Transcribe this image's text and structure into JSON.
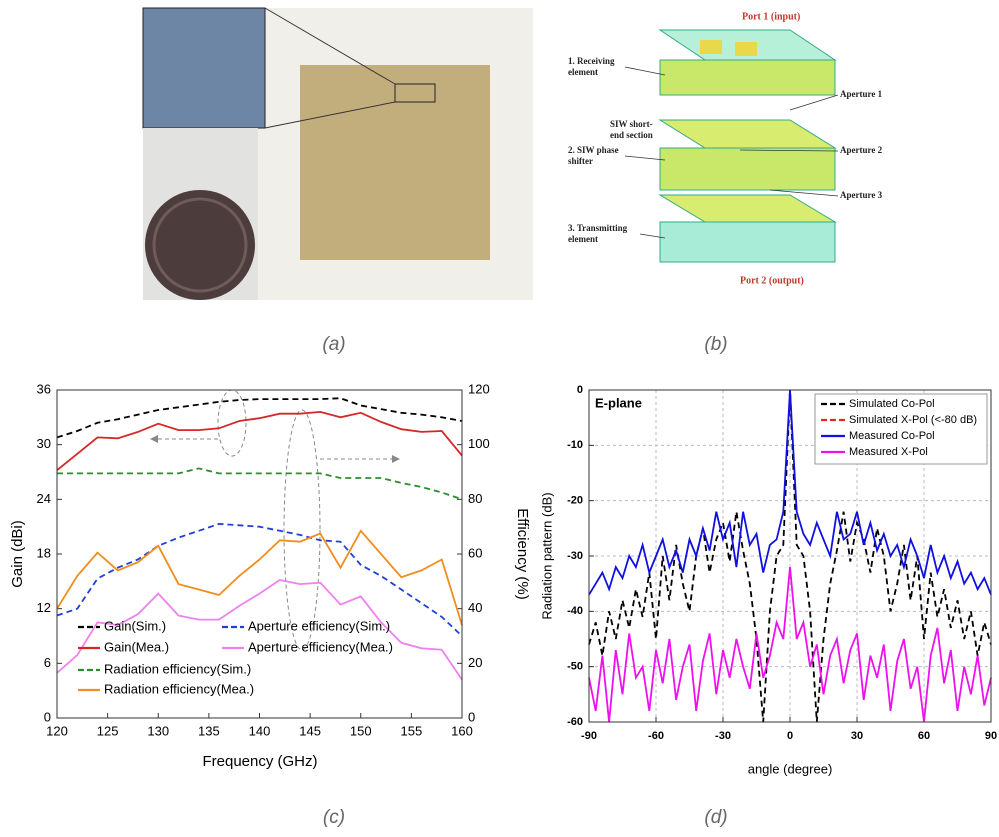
{
  "panels": {
    "captions": [
      "(a)",
      "(b)",
      "(c)",
      "(d)"
    ]
  },
  "diagram": {
    "labels": [
      "Port 1 (input)",
      "1. Receiving",
      "element",
      "SIW short-",
      "end section",
      "2. SIW phase",
      "shifter",
      "3. Transmitting",
      "element",
      "Aperture 1",
      "Aperture 2",
      "Aperture 3",
      "Port 2 (output)"
    ]
  },
  "chart_data": [
    {
      "type": "line",
      "xlabel": "Frequency (GHz)",
      "ylabel": "Gain (dBi)",
      "y2label": "Efficiency (%)",
      "x": [
        120,
        122,
        124,
        126,
        128,
        130,
        132,
        134,
        136,
        138,
        140,
        142,
        144,
        146,
        148,
        150,
        152,
        154,
        156,
        158,
        160
      ],
      "xlim": [
        120,
        160
      ],
      "xticks": [
        120,
        125,
        130,
        135,
        140,
        145,
        150,
        155,
        160
      ],
      "ylim": [
        0,
        36
      ],
      "yticks": [
        0,
        6,
        12,
        18,
        24,
        30,
        36
      ],
      "y2lim": [
        0,
        120
      ],
      "y2ticks": [
        0,
        20,
        40,
        60,
        80,
        100,
        120
      ],
      "grid": false,
      "series": [
        {
          "name": "Gain(Sim.)",
          "color": "#000000",
          "style": "dashed",
          "axis": "y",
          "values": [
            30.8,
            31.5,
            32.4,
            32.8,
            33.3,
            33.8,
            34.1,
            34.4,
            34.7,
            34.9,
            35,
            35,
            35,
            35,
            35.1,
            34.3,
            33.9,
            33.5,
            33.3,
            33.0,
            32.6
          ]
        },
        {
          "name": "Aperture efficiency(Sim.)",
          "color": "#1f3fd8",
          "style": "dashed",
          "axis": "y2",
          "values": [
            37.5,
            40,
            51,
            55,
            58,
            63,
            66,
            68.5,
            71,
            70.5,
            70,
            68.5,
            67,
            65,
            64.5,
            56,
            52,
            47,
            42,
            37,
            30
          ]
        },
        {
          "name": "Gain(Mea.)",
          "color": "#d62728",
          "style": "solid",
          "axis": "y",
          "values": [
            27.2,
            29,
            30.8,
            30.7,
            31.4,
            32.3,
            31.6,
            31.6,
            31.8,
            32.6,
            32.9,
            33.4,
            33.4,
            33.6,
            33,
            33.5,
            32.5,
            31.7,
            31.4,
            31.5,
            28.8
          ]
        },
        {
          "name": "Aperture efficiency(Mea.)",
          "color": "#ee82ee",
          "style": "solid",
          "axis": "y2",
          "values": [
            16.5,
            23,
            35,
            34,
            38,
            45.5,
            37.5,
            36,
            36,
            41,
            45.5,
            50.5,
            49,
            49.5,
            41.5,
            44.5,
            35,
            27.5,
            25.5,
            25,
            14
          ]
        },
        {
          "name": "Radiation efficiency(Sim.)",
          "color": "#2e8b2e",
          "style": "dashed",
          "axis": "y2",
          "values": [
            89.5,
            89.5,
            89.5,
            89.5,
            89.5,
            89.5,
            89.5,
            91.3,
            89.5,
            89.5,
            89.5,
            89.5,
            89.5,
            89.5,
            87.8,
            87.8,
            87.8,
            86,
            84.5,
            82.5,
            80
          ]
        },
        {
          "name": "Radiation efficiency(Mea.)",
          "color": "#f28c1e",
          "style": "solid",
          "axis": "y2",
          "values": [
            40,
            52,
            60.5,
            54,
            57,
            63,
            49,
            47,
            45,
            52,
            58,
            65,
            64.5,
            67.5,
            55,
            68.5,
            60,
            51.5,
            54,
            58,
            34
          ]
        }
      ]
    },
    {
      "type": "line",
      "annotation": "E-plane",
      "xlabel": "angle (degree)",
      "ylabel": "Radiation pattern (dB)",
      "x": [
        -90,
        -87,
        -84,
        -81,
        -78,
        -75,
        -72,
        -69,
        -66,
        -63,
        -60,
        -57,
        -54,
        -51,
        -48,
        -45,
        -42,
        -39,
        -36,
        -33,
        -30,
        -27,
        -24,
        -21,
        -18,
        -15,
        -12,
        -9,
        -6,
        -3,
        0,
        3,
        6,
        9,
        12,
        15,
        18,
        21,
        24,
        27,
        30,
        33,
        36,
        39,
        42,
        45,
        48,
        51,
        54,
        57,
        60,
        63,
        66,
        69,
        72,
        75,
        78,
        81,
        84,
        87,
        90
      ],
      "xlim": [
        -90,
        90
      ],
      "xticks": [
        -90,
        -60,
        -30,
        0,
        30,
        60,
        90
      ],
      "ylim": [
        -60,
        0
      ],
      "yticks": [
        -60,
        -50,
        -40,
        -30,
        -20,
        -10,
        0
      ],
      "grid": true,
      "legend": "upper right",
      "series": [
        {
          "name": "Simulated Co-Pol",
          "color": "#000000",
          "style": "dashed",
          "values": [
            -46,
            -42,
            -48,
            -40,
            -45,
            -38,
            -43,
            -36,
            -41,
            -33,
            -45,
            -30,
            -38,
            -28,
            -35,
            -40,
            -30,
            -25,
            -33,
            -27,
            -24,
            -31,
            -22,
            -29,
            -35,
            -45,
            -60,
            -40,
            -30,
            -28,
            0,
            -28,
            -30,
            -40,
            -60,
            -45,
            -35,
            -29,
            -22,
            -31,
            -24,
            -27,
            -33,
            -25,
            -30,
            -40,
            -35,
            -28,
            -38,
            -30,
            -45,
            -33,
            -41,
            -36,
            -43,
            -38,
            -45,
            -40,
            -48,
            -42,
            -46
          ]
        },
        {
          "name": "Simulated X-Pol (<-80 dB)",
          "color": "#e8281e",
          "style": "dashed",
          "values": [
            null,
            null,
            null,
            null,
            null,
            null,
            null,
            null,
            null,
            null,
            null,
            null,
            null,
            null,
            null,
            null,
            null,
            null,
            null,
            null,
            null,
            null,
            null,
            null,
            null,
            null,
            null,
            null,
            null,
            null,
            null,
            null,
            null,
            null,
            null,
            null,
            null,
            null,
            null,
            null,
            null,
            null,
            null,
            null,
            null,
            null,
            null,
            null,
            null,
            null,
            null,
            null,
            null,
            null,
            null,
            null,
            null,
            null,
            null,
            null,
            null
          ]
        },
        {
          "name": "Measured Co-Pol",
          "color": "#1010e0",
          "style": "solid",
          "values": [
            -37,
            -35,
            -33,
            -36,
            -32,
            -34,
            -30,
            -32,
            -28,
            -33,
            -30,
            -27,
            -32,
            -29,
            -33,
            -27,
            -30,
            -25,
            -29,
            -22,
            -27,
            -24,
            -32,
            -22,
            -28,
            -26,
            -33,
            -28,
            -27,
            -22,
            0,
            -22,
            -26,
            -28,
            -24,
            -27,
            -30,
            -22,
            -27,
            -26,
            -22,
            -28,
            -24,
            -29,
            -26,
            -30,
            -28,
            -32,
            -27,
            -30,
            -34,
            -28,
            -33,
            -30,
            -34,
            -31,
            -35,
            -33,
            -36,
            -34,
            -37
          ]
        },
        {
          "name": "Measured X-Pol",
          "color": "#ee10ee",
          "style": "solid",
          "values": [
            -52,
            -58,
            -48,
            -60,
            -47,
            -55,
            -44,
            -52,
            -50,
            -58,
            -47,
            -53,
            -45,
            -56,
            -50,
            -46,
            -58,
            -49,
            -44,
            -55,
            -47,
            -52,
            -45,
            -50,
            -54,
            -44,
            -52,
            -48,
            -42,
            -45,
            -32,
            -45,
            -42,
            -50,
            -46,
            -55,
            -48,
            -45,
            -53,
            -47,
            -44,
            -56,
            -48,
            -52,
            -46,
            -58,
            -49,
            -45,
            -54,
            -50,
            -60,
            -48,
            -43,
            -53,
            -47,
            -58,
            -50,
            -55,
            -48,
            -57,
            -52
          ]
        }
      ]
    }
  ]
}
